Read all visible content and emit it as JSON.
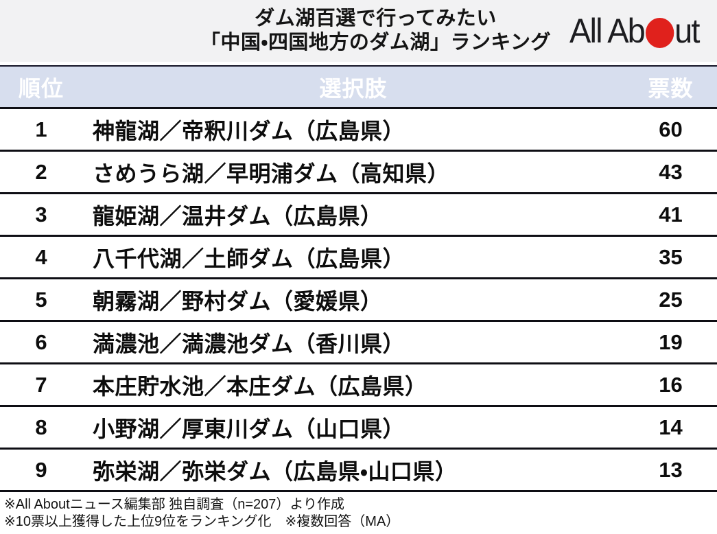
{
  "header": {
    "title_line1": "ダム湖百選で行ってみたい",
    "title_line2": "「中国・四国地方のダム湖」ランキング",
    "logo_part1": "All Ab",
    "logo_part2": "ut"
  },
  "chart_data": {
    "type": "table",
    "title": "ダム湖百選で行ってみたい「中国・四国地方のダム湖」ランキング",
    "columns": {
      "rank": "順位",
      "choice": "選択肢",
      "votes": "票数"
    },
    "ranks": [
      1,
      2,
      3,
      4,
      5,
      6,
      7,
      8,
      9
    ],
    "categories": [
      "神龍湖／帝釈川ダム（広島県）",
      "さめうら湖／早明浦ダム（高知県）",
      "龍姫湖／温井ダム（広島県）",
      "八千代湖／土師ダム（広島県）",
      "朝霧湖／野村ダム（愛媛県）",
      "満濃池／満濃池ダム（香川県）",
      "本庄貯水池／本庄ダム（広島県）",
      "小野湖／厚東川ダム（山口県）",
      "弥栄湖／弥栄ダム（広島県・山口県）"
    ],
    "values": [
      60,
      43,
      41,
      35,
      25,
      19,
      16,
      14,
      13
    ]
  },
  "footer": {
    "note1": "※All Aboutニュース編集部 独自調査（n=207）より作成",
    "note2": "※10票以上獲得した上位9位をランキング化　※複数回答（MA）"
  },
  "colors": {
    "title_band_bg": "#f2f2f3",
    "table_header_bg": "#d7deee",
    "table_header_text": "#ffffff",
    "row_text": "#0d0d0d",
    "separator": "#0e0e14",
    "logo_red": "#e0211c"
  }
}
